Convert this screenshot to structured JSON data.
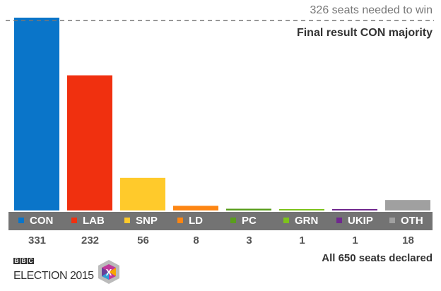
{
  "chart_data": {
    "type": "bar",
    "categories": [
      "CON",
      "LAB",
      "SNP",
      "LD",
      "PC",
      "GRN",
      "UKIP",
      "OTH"
    ],
    "values": [
      331,
      232,
      56,
      8,
      3,
      1,
      1,
      18
    ],
    "colors": [
      "#0a75c9",
      "#f0300f",
      "#ffca2b",
      "#fd8613",
      "#5a9e1d",
      "#7dc31c",
      "#70288f",
      "#a0a0a0"
    ],
    "reference_line": {
      "value": 326,
      "label": "326 seats needed to win",
      "style": "dashed"
    },
    "subtitle": "Final result CON majority",
    "footnote": "All 650 seats declared",
    "ylim": [
      0,
      331
    ]
  },
  "logo": {
    "bbc": [
      "B",
      "B",
      "C"
    ],
    "text": "ELECTION 2015",
    "mark": "X"
  }
}
